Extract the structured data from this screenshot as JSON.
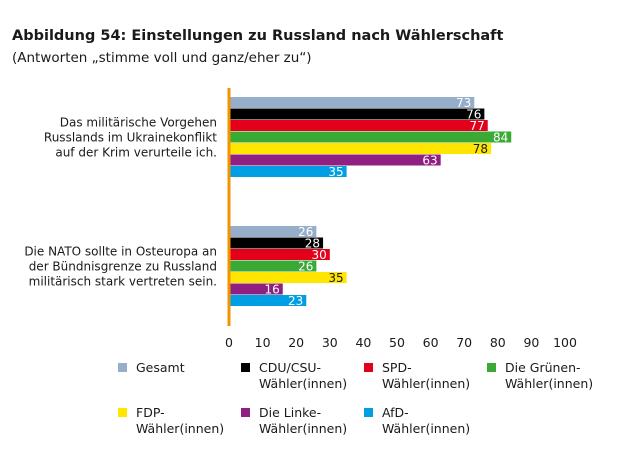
{
  "title": "Abbildung 54: Einstellungen zu Russland nach Wählerschaft",
  "subtitle": "(Antworten „stimme voll und ganz/eher zu“)",
  "chart_data": {
    "type": "bar",
    "orientation": "horizontal",
    "categories": [
      "Das militärische Vorgehen\nRusslands im Ukrainekonflikt\nauf der Krim verurteile ich.",
      "Die NATO sollte in Osteuropa an\nder Bündnisgrenze zu Russland\nmilitärisch stark vertreten sein."
    ],
    "series": [
      {
        "name": "Gesamt",
        "color": "#97aecb",
        "values": [
          73,
          26
        ]
      },
      {
        "name": "CDU/CSU-\nWähler(innen)",
        "color": "#000000",
        "values": [
          76,
          28
        ]
      },
      {
        "name": "SPD-\nWähler(innen)",
        "color": "#e2001a",
        "values": [
          77,
          30
        ]
      },
      {
        "name": "Die Grünen-\nWähler(innen)",
        "color": "#3aaa35",
        "values": [
          84,
          26
        ]
      },
      {
        "name": "FDP-\nWähler(innen)",
        "color": "#ffe500",
        "values": [
          78,
          35
        ]
      },
      {
        "name": "Die Linke-\nWähler(innen)",
        "color": "#8f1f80",
        "values": [
          63,
          16
        ]
      },
      {
        "name": "AfD-\nWähler(innen)",
        "color": "#009fe3",
        "values": [
          35,
          23
        ]
      }
    ],
    "xlim": [
      0,
      100
    ],
    "xticks": [
      "0",
      "10",
      "20",
      "30",
      "40",
      "50",
      "60",
      "70",
      "80",
      "90",
      "100"
    ],
    "axis_color": "#f29400",
    "grid": false,
    "legend": "bottom"
  }
}
